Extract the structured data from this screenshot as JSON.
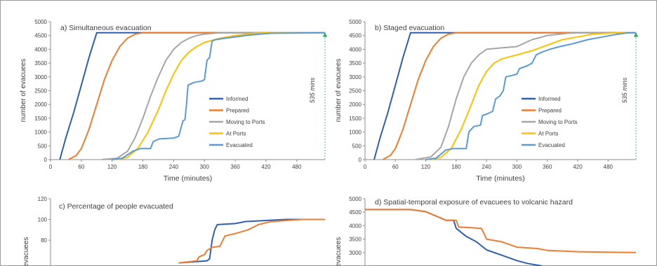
{
  "chart_data": [
    {
      "type": "line",
      "title": "a) Simultaneous evacuation",
      "xlabel": "Time (minutes)",
      "ylabel": "number of evacuees",
      "xlim": [
        0,
        535
      ],
      "ylim": [
        0,
        5000
      ],
      "xticks": [
        0,
        60,
        120,
        180,
        240,
        300,
        360,
        420,
        480
      ],
      "yticks": [
        0,
        500,
        1000,
        1500,
        2000,
        2500,
        3000,
        3500,
        4000,
        4500,
        5000
      ],
      "grid": false,
      "legend_position": "center-right",
      "annotation": {
        "text": "535 mins",
        "x": 535
      },
      "series": [
        {
          "name": "Informed",
          "color": "#2e5fb0",
          "points": [
            [
              18,
              0
            ],
            [
              30,
              800
            ],
            [
              45,
              1700
            ],
            [
              60,
              2700
            ],
            [
              75,
              3700
            ],
            [
              90,
              4600
            ],
            [
              535,
              4600
            ]
          ]
        },
        {
          "name": "Prepared",
          "color": "#ed7d31",
          "points": [
            [
              35,
              0
            ],
            [
              50,
              150
            ],
            [
              60,
              400
            ],
            [
              75,
              1100
            ],
            [
              90,
              2000
            ],
            [
              105,
              2900
            ],
            [
              120,
              3600
            ],
            [
              135,
              4100
            ],
            [
              150,
              4400
            ],
            [
              165,
              4550
            ],
            [
              180,
              4600
            ],
            [
              535,
              4600
            ]
          ]
        },
        {
          "name": "Moving to Ports",
          "color": "#a5a5a5",
          "points": [
            [
              100,
              0
            ],
            [
              130,
              50
            ],
            [
              150,
              300
            ],
            [
              165,
              800
            ],
            [
              180,
              1500
            ],
            [
              195,
              2300
            ],
            [
              210,
              3000
            ],
            [
              225,
              3600
            ],
            [
              240,
              4000
            ],
            [
              255,
              4250
            ],
            [
              270,
              4400
            ],
            [
              285,
              4500
            ],
            [
              300,
              4550
            ],
            [
              330,
              4600
            ],
            [
              535,
              4600
            ]
          ]
        },
        {
          "name": "At Ports",
          "color": "#ffc000",
          "points": [
            [
              130,
              0
            ],
            [
              150,
              80
            ],
            [
              170,
              400
            ],
            [
              190,
              1000
            ],
            [
              210,
              1800
            ],
            [
              225,
              2500
            ],
            [
              240,
              3100
            ],
            [
              255,
              3600
            ],
            [
              270,
              3900
            ],
            [
              285,
              4100
            ],
            [
              300,
              4250
            ],
            [
              330,
              4400
            ],
            [
              360,
              4500
            ],
            [
              400,
              4580
            ],
            [
              430,
              4600
            ],
            [
              535,
              4600
            ]
          ]
        },
        {
          "name": "Evacuated",
          "color": "#5b9bd5",
          "points": [
            [
              120,
              0
            ],
            [
              140,
              50
            ],
            [
              160,
              300
            ],
            [
              175,
              400
            ],
            [
              195,
              400
            ],
            [
              200,
              650
            ],
            [
              212,
              750
            ],
            [
              240,
              780
            ],
            [
              250,
              850
            ],
            [
              255,
              1200
            ],
            [
              258,
              1400
            ],
            [
              262,
              1450
            ],
            [
              265,
              2000
            ],
            [
              268,
              2700
            ],
            [
              280,
              2800
            ],
            [
              295,
              2850
            ],
            [
              300,
              2900
            ],
            [
              305,
              3600
            ],
            [
              310,
              3700
            ],
            [
              315,
              4300
            ],
            [
              322,
              4350
            ],
            [
              340,
              4400
            ],
            [
              360,
              4450
            ],
            [
              390,
              4520
            ],
            [
              430,
              4580
            ],
            [
              535,
              4600
            ]
          ]
        }
      ]
    },
    {
      "type": "line",
      "title": "b) Staged evacuation",
      "xlabel": "Time (minutes)",
      "ylabel": "number of evacuees",
      "xlim": [
        0,
        535
      ],
      "ylim": [
        0,
        5000
      ],
      "xticks": [
        0,
        60,
        120,
        180,
        240,
        300,
        360,
        420,
        480
      ],
      "yticks": [
        0,
        500,
        1000,
        1500,
        2000,
        2500,
        3000,
        3500,
        4000,
        4500,
        5000
      ],
      "grid": false,
      "legend_position": "center-right",
      "annotation": {
        "text": "535 mins",
        "x": 535
      },
      "series": [
        {
          "name": "Informed",
          "color": "#2e5fb0",
          "points": [
            [
              18,
              0
            ],
            [
              30,
              800
            ],
            [
              45,
              1700
            ],
            [
              60,
              2700
            ],
            [
              75,
              3700
            ],
            [
              90,
              4600
            ],
            [
              535,
              4600
            ]
          ]
        },
        {
          "name": "Prepared",
          "color": "#ed7d31",
          "points": [
            [
              35,
              0
            ],
            [
              50,
              150
            ],
            [
              60,
              400
            ],
            [
              75,
              1100
            ],
            [
              90,
              2000
            ],
            [
              105,
              2900
            ],
            [
              120,
              3600
            ],
            [
              135,
              4100
            ],
            [
              150,
              4400
            ],
            [
              165,
              4550
            ],
            [
              180,
              4600
            ],
            [
              535,
              4600
            ]
          ]
        },
        {
          "name": "Moving to Ports",
          "color": "#a5a5a5",
          "points": [
            [
              100,
              0
            ],
            [
              130,
              100
            ],
            [
              150,
              450
            ],
            [
              165,
              1200
            ],
            [
              180,
              2200
            ],
            [
              195,
              3000
            ],
            [
              210,
              3500
            ],
            [
              225,
              3800
            ],
            [
              240,
              4000
            ],
            [
              270,
              4050
            ],
            [
              300,
              4100
            ],
            [
              330,
              4350
            ],
            [
              360,
              4500
            ],
            [
              400,
              4580
            ],
            [
              430,
              4600
            ],
            [
              535,
              4600
            ]
          ]
        },
        {
          "name": "At Ports",
          "color": "#ffc000",
          "points": [
            [
              130,
              0
            ],
            [
              150,
              80
            ],
            [
              170,
              400
            ],
            [
              190,
              1100
            ],
            [
              210,
              2000
            ],
            [
              225,
              2700
            ],
            [
              240,
              3200
            ],
            [
              255,
              3500
            ],
            [
              270,
              3650
            ],
            [
              300,
              3800
            ],
            [
              330,
              3950
            ],
            [
              360,
              4150
            ],
            [
              390,
              4350
            ],
            [
              420,
              4450
            ],
            [
              450,
              4550
            ],
            [
              500,
              4600
            ],
            [
              535,
              4600
            ]
          ]
        },
        {
          "name": "Evacuated",
          "color": "#5b9bd5",
          "points": [
            [
              120,
              0
            ],
            [
              140,
              50
            ],
            [
              160,
              350
            ],
            [
              175,
              400
            ],
            [
              200,
              400
            ],
            [
              205,
              1000
            ],
            [
              215,
              1200
            ],
            [
              228,
              1250
            ],
            [
              232,
              1600
            ],
            [
              240,
              1650
            ],
            [
              252,
              1750
            ],
            [
              258,
              2200
            ],
            [
              266,
              2300
            ],
            [
              273,
              2500
            ],
            [
              278,
              3000
            ],
            [
              290,
              3050
            ],
            [
              300,
              3100
            ],
            [
              305,
              3300
            ],
            [
              320,
              3400
            ],
            [
              330,
              3500
            ],
            [
              338,
              3800
            ],
            [
              350,
              3900
            ],
            [
              365,
              4000
            ],
            [
              385,
              4100
            ],
            [
              410,
              4200
            ],
            [
              440,
              4350
            ],
            [
              470,
              4450
            ],
            [
              500,
              4550
            ],
            [
              520,
              4600
            ],
            [
              535,
              4600
            ]
          ]
        }
      ]
    },
    {
      "type": "line",
      "title": "c) Percentage of people evacuated",
      "ylabel": "evacuees",
      "ylim": [
        55,
        120
      ],
      "yticks": [
        80,
        100,
        120
      ],
      "xrange": [
        0,
        535
      ],
      "grid": false,
      "series": [
        {
          "color": "#2e5fb0",
          "points": [
            [
              250,
              58
            ],
            [
              305,
              60
            ],
            [
              310,
              62
            ],
            [
              315,
              80
            ],
            [
              320,
              90
            ],
            [
              325,
              95
            ],
            [
              360,
              96
            ],
            [
              380,
              98
            ],
            [
              420,
              99
            ],
            [
              460,
              100
            ],
            [
              535,
              100
            ]
          ]
        },
        {
          "color": "#ed7d31",
          "points": [
            [
              250,
              58
            ],
            [
              285,
              60
            ],
            [
              290,
              64
            ],
            [
              300,
              66
            ],
            [
              305,
              70
            ],
            [
              315,
              73
            ],
            [
              330,
              74
            ],
            [
              340,
              84
            ],
            [
              365,
              87
            ],
            [
              385,
              90
            ],
            [
              405,
              95
            ],
            [
              430,
              98
            ],
            [
              460,
              99
            ],
            [
              490,
              100
            ],
            [
              535,
              100
            ]
          ]
        }
      ]
    },
    {
      "type": "line",
      "title": "d) Spatial-temporal exposure of evacuees to volcanic hazard",
      "ylabel": "evacuees",
      "ylim": [
        2500,
        5000
      ],
      "yticks": [
        3000,
        3500,
        4000,
        4500,
        5000
      ],
      "xrange": [
        0,
        535
      ],
      "grid": false,
      "series": [
        {
          "color": "#2e5fb0",
          "points": [
            [
              0,
              4600
            ],
            [
              90,
              4600
            ],
            [
              120,
              4520
            ],
            [
              160,
              4200
            ],
            [
              175,
              4200
            ],
            [
              180,
              3900
            ],
            [
              200,
              3600
            ],
            [
              220,
              3400
            ],
            [
              240,
              3100
            ],
            [
              270,
              2900
            ],
            [
              300,
              2700
            ],
            [
              320,
              2600
            ],
            [
              350,
              2500
            ]
          ]
        },
        {
          "color": "#ed7d31",
          "points": [
            [
              0,
              4600
            ],
            [
              90,
              4600
            ],
            [
              120,
              4520
            ],
            [
              160,
              4200
            ],
            [
              180,
              4200
            ],
            [
              185,
              3950
            ],
            [
              230,
              3900
            ],
            [
              240,
              3500
            ],
            [
              270,
              3400
            ],
            [
              300,
              3200
            ],
            [
              340,
              3150
            ],
            [
              360,
              3080
            ],
            [
              420,
              3030
            ],
            [
              535,
              3000
            ]
          ]
        }
      ]
    }
  ]
}
